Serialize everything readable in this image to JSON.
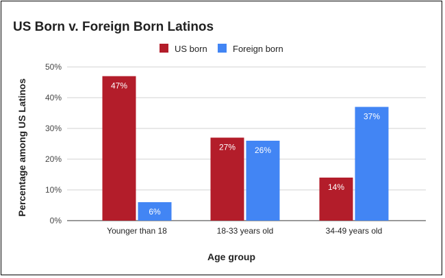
{
  "chart_data": {
    "type": "bar",
    "title": "US Born v. Foreign Born Latinos",
    "xlabel": "Age group",
    "ylabel": "Percentage among US Latinos",
    "categories": [
      "Younger than 18",
      "18-33 years old",
      "34-49 years old"
    ],
    "series": [
      {
        "name": "US born",
        "color": "#b31d2a",
        "values": [
          47,
          27,
          14
        ],
        "labels": [
          "47%",
          "27%",
          "14%"
        ]
      },
      {
        "name": "Foreign born",
        "color": "#4285f4",
        "values": [
          6,
          26,
          37
        ],
        "labels": [
          "6%",
          "26%",
          "37%"
        ]
      }
    ],
    "ylim": [
      0,
      50
    ],
    "yticks": [
      0,
      10,
      20,
      30,
      40,
      50
    ],
    "ytick_labels": [
      "0%",
      "10%",
      "20%",
      "30%",
      "40%",
      "50%"
    ],
    "grid": true,
    "legend_position": "top-center"
  }
}
